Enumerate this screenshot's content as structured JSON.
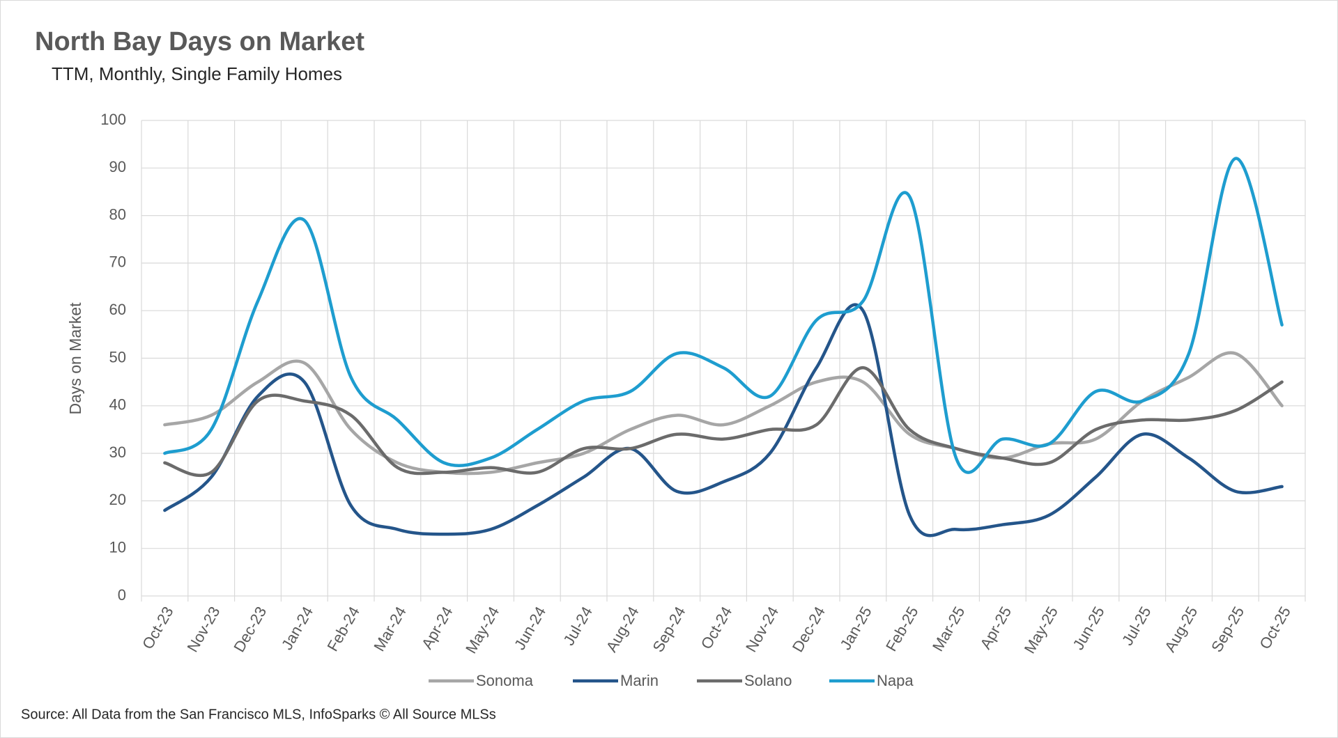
{
  "chart_data": {
    "type": "line",
    "title": "North Bay Days on Market",
    "subtitle": "TTM, Monthly, Single Family Homes",
    "y_label": "Days on Market",
    "source": "Source: All Data from the San Francisco MLS, InfoSparks © All Source MLSs",
    "categories": [
      "Oct-23",
      "Nov-23",
      "Dec-23",
      "Jan-24",
      "Feb-24",
      "Mar-24",
      "Apr-24",
      "May-24",
      "Jun-24",
      "Jul-24",
      "Aug-24",
      "Sep-24",
      "Oct-24",
      "Nov-24",
      "Dec-24",
      "Jan-25",
      "Feb-25",
      "Mar-25",
      "Apr-25",
      "May-25",
      "Jun-25",
      "Jul-25",
      "Aug-25",
      "Sep-25",
      "Oct-25"
    ],
    "series": [
      {
        "name": "Sonoma",
        "color": "#a6a6a6",
        "values": [
          36,
          38,
          45,
          49,
          35,
          28,
          26,
          26,
          28,
          30,
          35,
          38,
          36,
          40,
          45,
          45,
          34,
          31,
          29,
          32,
          33,
          41,
          46,
          51,
          40
        ]
      },
      {
        "name": "Marin",
        "color": "#24558a",
        "values": [
          18,
          25,
          42,
          45,
          19,
          14,
          13,
          14,
          19,
          25,
          31,
          22,
          24,
          30,
          48,
          60,
          17,
          14,
          15,
          17,
          25,
          34,
          29,
          22,
          23
        ]
      },
      {
        "name": "Solano",
        "color": "#6b6b6b",
        "values": [
          28,
          26,
          41,
          41,
          38,
          27,
          26,
          27,
          26,
          31,
          31,
          34,
          33,
          35,
          36,
          48,
          35,
          31,
          29,
          28,
          35,
          37,
          37,
          39,
          45
        ]
      },
      {
        "name": "Napa",
        "color": "#1e9dcf",
        "values": [
          30,
          35,
          62,
          79,
          46,
          37,
          28,
          29,
          35,
          41,
          43,
          51,
          48,
          42,
          58,
          62,
          84,
          29,
          33,
          32,
          43,
          41,
          51,
          92,
          57
        ]
      }
    ],
    "ylim": [
      0,
      100
    ],
    "yticks": [
      0,
      10,
      20,
      30,
      40,
      50,
      60,
      70,
      80,
      90,
      100
    ],
    "grid": true,
    "smooth": true
  }
}
